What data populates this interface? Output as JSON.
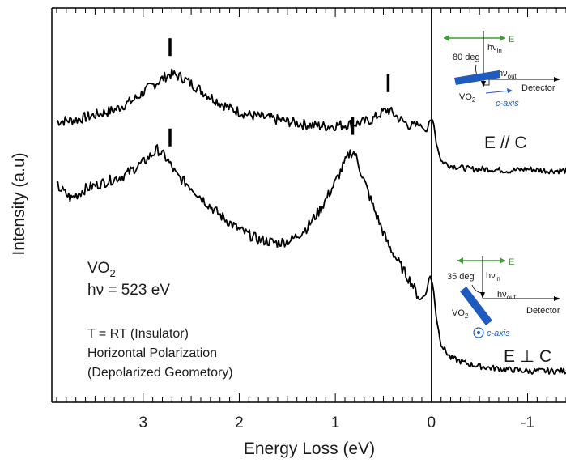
{
  "chart_data": {
    "type": "line",
    "xlabel": "Energy Loss (eV)",
    "ylabel": "Intensity (a.u)",
    "xlim": [
      3.95,
      -1.4
    ],
    "x_reversed": true,
    "xticks": [
      "3",
      "2",
      "1",
      "0",
      "-1"
    ],
    "xtick_values": [
      3,
      2,
      1,
      0,
      -1
    ],
    "grid": false,
    "ylim": [
      0,
      12
    ],
    "series": [
      {
        "label": "E // C",
        "color": "#000000",
        "x": [
          3.9,
          3.7,
          3.5,
          3.3,
          3.1,
          2.95,
          2.8,
          2.72,
          2.6,
          2.45,
          2.3,
          2.1,
          1.9,
          1.7,
          1.5,
          1.3,
          1.1,
          0.9,
          0.75,
          0.62,
          0.5,
          0.45,
          0.38,
          0.3,
          0.2,
          0.12,
          0.05,
          0.02,
          -0.02,
          -0.05,
          -0.1,
          -0.2,
          -0.4,
          -0.6,
          -0.8,
          -1.0,
          -1.2,
          -1.4
        ],
        "y": [
          8.55,
          8.6,
          8.75,
          8.9,
          9.2,
          9.55,
          9.85,
          10.0,
          9.9,
          9.6,
          9.3,
          8.95,
          8.75,
          8.65,
          8.55,
          8.45,
          8.4,
          8.45,
          8.5,
          8.6,
          8.85,
          8.9,
          8.75,
          8.55,
          8.4,
          8.45,
          8.25,
          8.55,
          8.6,
          7.9,
          7.35,
          7.2,
          7.1,
          7.1,
          7.05,
          7.1,
          7.05,
          7.05
        ]
      },
      {
        "label": "E ⊥ C",
        "color": "#000000",
        "x": [
          3.9,
          3.75,
          3.6,
          3.4,
          3.2,
          3.0,
          2.85,
          2.75,
          2.65,
          2.5,
          2.35,
          2.2,
          2.0,
          1.8,
          1.6,
          1.45,
          1.3,
          1.15,
          1.0,
          0.9,
          0.85,
          0.8,
          0.72,
          0.6,
          0.45,
          0.3,
          0.2,
          0.12,
          0.05,
          0.02,
          -0.02,
          -0.05,
          -0.1,
          -0.2,
          -0.4,
          -0.6,
          -0.8,
          -1.0,
          -1.2,
          -1.4
        ],
        "y": [
          6.6,
          6.2,
          6.5,
          6.7,
          6.9,
          7.3,
          7.7,
          7.4,
          6.9,
          6.55,
          6.1,
          5.7,
          5.25,
          4.95,
          4.85,
          4.95,
          5.3,
          5.9,
          6.7,
          7.3,
          7.6,
          7.6,
          6.9,
          5.9,
          4.8,
          4.05,
          3.6,
          3.1,
          3.35,
          3.9,
          3.5,
          2.6,
          1.75,
          1.35,
          1.15,
          1.05,
          1.0,
          0.95,
          0.95,
          0.95
        ]
      }
    ],
    "peak_markers": [
      {
        "series": 0,
        "x": 2.72
      },
      {
        "series": 0,
        "x": 0.45
      },
      {
        "series": 1,
        "x": 2.72
      },
      {
        "series": 1,
        "x": 0.82
      }
    ],
    "annotations": {
      "material": "VO",
      "material_sub": "2",
      "energy": "hν = 523 eV",
      "temperature": "T = RT (Insulator)",
      "polarization": "Horizontal Polarization",
      "geometry": "(Depolarized Geometory)"
    },
    "insets": [
      {
        "field_label": "E",
        "angle": "80 deg",
        "hv_in": "hν",
        "hv_in_sub": "in",
        "hv_out": "hν",
        "hv_out_sub": "out",
        "detector": "Detector",
        "sample": "VO",
        "sample_sub": "2",
        "axis": "c-axis",
        "pol_label": "E // C",
        "accent": "#1f5bbf",
        "green": "#3aa02f"
      },
      {
        "field_label": "E",
        "angle": "35 deg",
        "hv_in": "hν",
        "hv_in_sub": "in",
        "hv_out": "hν",
        "hv_out_sub": "out",
        "detector": "Detector",
        "sample": "VO",
        "sample_sub": "2",
        "axis": "c-axis",
        "pol_label": "E ⊥ C",
        "accent": "#1f5bbf",
        "green": "#3aa02f"
      }
    ]
  }
}
